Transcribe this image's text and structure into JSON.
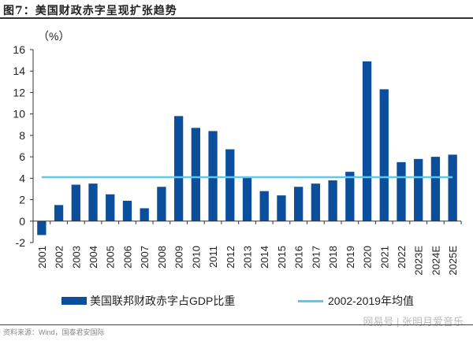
{
  "chart_data": {
    "type": "bar",
    "title": "图7：美国财政赤字呈现扩张趋势",
    "ylabel": "（%）",
    "xlabel": "",
    "ylim": [
      -2,
      16
    ],
    "yticks": [
      -2,
      0,
      2,
      4,
      6,
      8,
      10,
      12,
      14,
      16
    ],
    "grid": false,
    "legend_position": "bottom",
    "categories": [
      "2001",
      "2002",
      "2003",
      "2004",
      "2005",
      "2006",
      "2007",
      "2008",
      "2009",
      "2010",
      "2011",
      "2012",
      "2013",
      "2014",
      "2015",
      "2016",
      "2017",
      "2018",
      "2019",
      "2020",
      "2021",
      "2022",
      "2023E",
      "2024E",
      "2025E"
    ],
    "series": [
      {
        "name": "美国联邦财政赤字占GDP比重",
        "type": "bar",
        "color": "#0b4f9c",
        "values": [
          -1.3,
          1.5,
          3.4,
          3.5,
          2.5,
          1.9,
          1.2,
          3.2,
          9.8,
          8.7,
          8.4,
          6.7,
          4.1,
          2.8,
          2.4,
          3.2,
          3.5,
          3.8,
          4.6,
          14.9,
          12.3,
          5.5,
          5.8,
          6.0,
          6.2
        ]
      },
      {
        "name": "2002-2019年均值",
        "type": "line",
        "color": "#5bc8ec",
        "value": 4.1
      }
    ]
  },
  "footer": {
    "source": "资料来源：Wind，国泰君安国际",
    "watermark": "网易号 | 张明月爱音乐"
  }
}
